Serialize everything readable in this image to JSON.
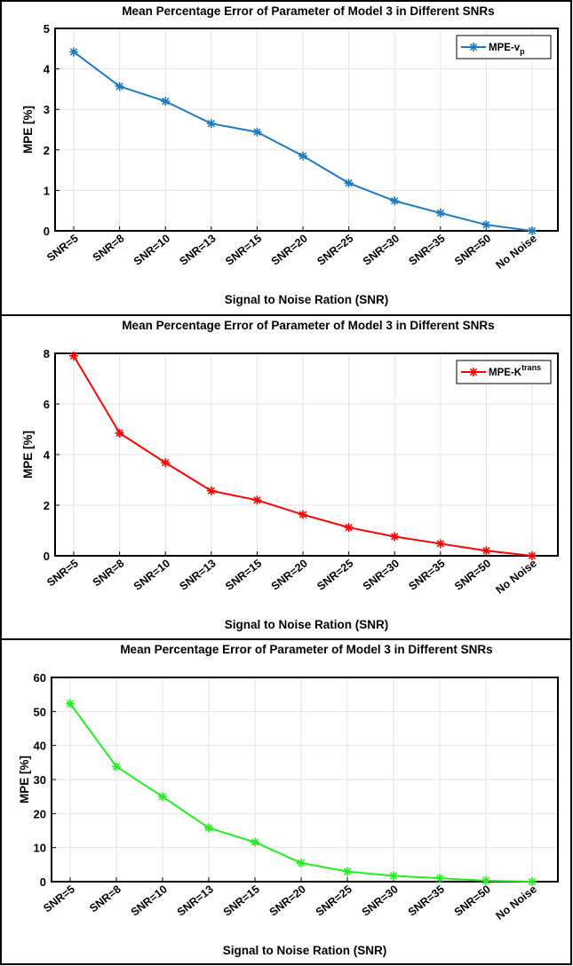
{
  "chart_data": [
    {
      "type": "line",
      "title": "Mean Percentage Error of Parameter of Model 3 in Different SNRs",
      "x_label": "Signal to Noise Ration (SNR)",
      "y_label": "MPE [%]",
      "categories": [
        "SNR=5",
        "SNR=8",
        "SNR=10",
        "SNR=13",
        "SNR=15",
        "SNR=20",
        "SNR=25",
        "SNR=30",
        "SNR=35",
        "SNR=50",
        "No Noise"
      ],
      "series": [
        {
          "name": "MPE-v",
          "name_subscript": "p",
          "color": "#1f7bbf",
          "values": [
            4.42,
            3.57,
            3.2,
            2.65,
            2.44,
            1.85,
            1.18,
            0.74,
            0.44,
            0.15,
            0
          ]
        }
      ],
      "ylim": [
        0,
        5
      ],
      "yticks": [
        0,
        1,
        2,
        3,
        4,
        5
      ],
      "grid": true,
      "legend": "upper right"
    },
    {
      "type": "line",
      "title": "Mean Percentage Error of Parameter of Model 3 in Different SNRs",
      "x_label": "Signal to Noise Ration (SNR)",
      "y_label": "MPE [%]",
      "categories": [
        "SNR=5",
        "SNR=8",
        "SNR=10",
        "SNR=13",
        "SNR=15",
        "SNR=20",
        "SNR=25",
        "SNR=30",
        "SNR=35",
        "SNR=50",
        "No Noise"
      ],
      "series": [
        {
          "name": "MPE-K",
          "name_superscript": "trans",
          "color": "#ff0000",
          "values": [
            7.9,
            4.85,
            3.68,
            2.57,
            2.2,
            1.63,
            1.12,
            0.76,
            0.48,
            0.2,
            0
          ]
        }
      ],
      "ylim": [
        0,
        8
      ],
      "yticks": [
        0,
        2,
        4,
        6,
        8
      ],
      "grid": true,
      "legend": "upper right"
    },
    {
      "type": "line",
      "title": "Mean Percentage Error of Parameter of Model 3 in Different SNRs",
      "x_label": "Signal to Noise Ration (SNR)",
      "y_label": "MPE [%]",
      "categories": [
        "SNR=5",
        "SNR=8",
        "SNR=10",
        "SNR=13",
        "SNR=15",
        "SNR=20",
        "SNR=25",
        "SNR=30",
        "SNR=35",
        "SNR=50",
        "No Noise"
      ],
      "series": [
        {
          "color": "#22ee22",
          "values": [
            52.3,
            33.8,
            25,
            15.8,
            11.6,
            5.5,
            3,
            1.7,
            1,
            0.3,
            0
          ]
        }
      ],
      "ylim": [
        0,
        60
      ],
      "yticks": [
        0,
        10,
        20,
        30,
        40,
        50,
        60
      ],
      "grid": true
    }
  ]
}
